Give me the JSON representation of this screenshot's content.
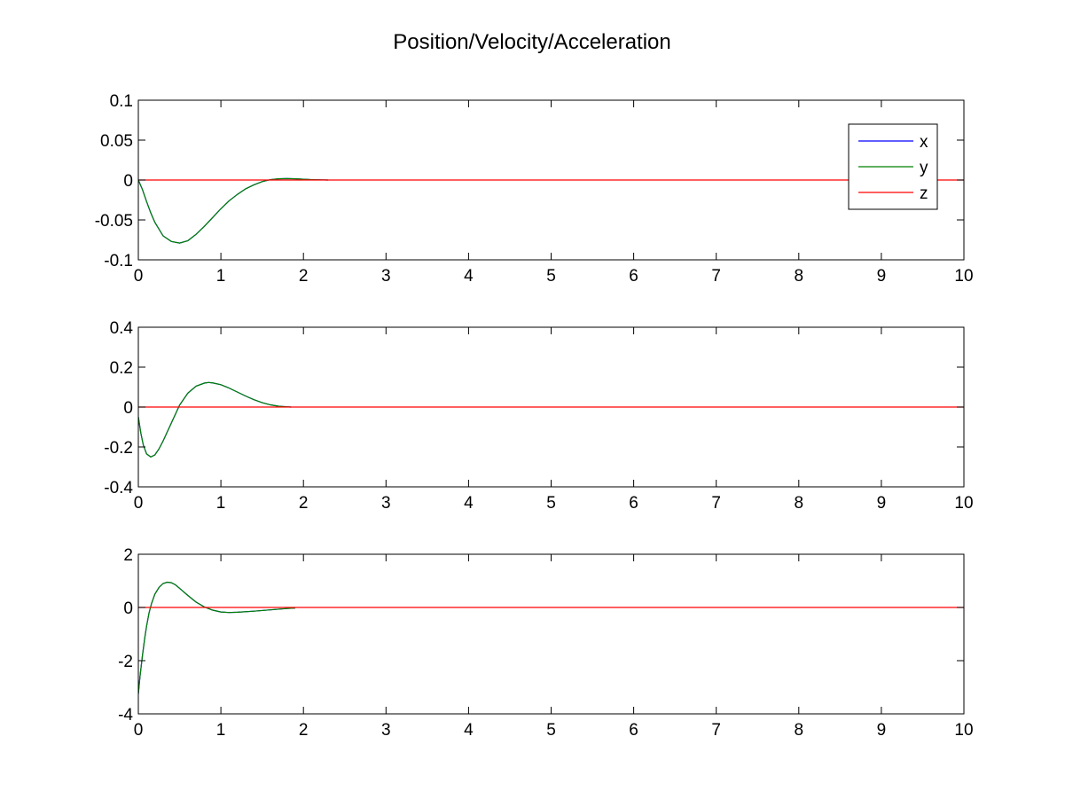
{
  "figure": {
    "title": "Position/Velocity/Acceleration"
  },
  "colors": {
    "background": "#ffffff",
    "axes": "#000000",
    "x": "#0000ff",
    "y": "#008000",
    "z": "#ff0000"
  },
  "chart_data": [
    {
      "type": "line",
      "title": "",
      "xlabel": "",
      "ylabel": "",
      "xlim": [
        0,
        10
      ],
      "ylim": [
        -0.1,
        0.1
      ],
      "xticks": [
        0,
        1,
        2,
        3,
        4,
        5,
        6,
        7,
        8,
        9,
        10
      ],
      "yticks": [
        -0.1,
        -0.05,
        0,
        0.05,
        0.1
      ],
      "ytick_labels": [
        "-0.1",
        "-0.05",
        "0",
        "0.05",
        "0.1"
      ],
      "grid": false,
      "legend": {
        "position": "top-right",
        "entries": [
          "x",
          "y",
          "z"
        ]
      },
      "series": [
        {
          "name": "x",
          "color": "#0000ff",
          "x": [
            0,
            0.05,
            0.1,
            0.15,
            0.2,
            0.3,
            0.4,
            0.5,
            0.6,
            0.7,
            0.8,
            0.9,
            1.0,
            1.1,
            1.2,
            1.3,
            1.4,
            1.5,
            1.6,
            1.7,
            1.8,
            1.9,
            2.0,
            2.1,
            2.2,
            2.3
          ],
          "y": [
            0,
            -0.012,
            -0.027,
            -0.041,
            -0.053,
            -0.07,
            -0.077,
            -0.079,
            -0.076,
            -0.068,
            -0.058,
            -0.047,
            -0.036,
            -0.026,
            -0.018,
            -0.011,
            -0.006,
            -0.002,
            0.0005,
            0.0015,
            0.0018,
            0.0015,
            0.001,
            0.0005,
            0.0002,
            0
          ]
        },
        {
          "name": "y",
          "color": "#008000",
          "x": [
            0,
            0.05,
            0.1,
            0.15,
            0.2,
            0.3,
            0.4,
            0.5,
            0.6,
            0.7,
            0.8,
            0.9,
            1.0,
            1.1,
            1.2,
            1.3,
            1.4,
            1.5,
            1.6,
            1.7,
            1.8,
            1.9,
            2.0,
            2.1,
            2.2,
            2.3
          ],
          "y": [
            0,
            -0.012,
            -0.027,
            -0.041,
            -0.053,
            -0.07,
            -0.077,
            -0.079,
            -0.076,
            -0.068,
            -0.058,
            -0.047,
            -0.036,
            -0.026,
            -0.018,
            -0.011,
            -0.006,
            -0.002,
            0.0005,
            0.0015,
            0.0018,
            0.0015,
            0.001,
            0.0005,
            0.0002,
            0
          ]
        },
        {
          "name": "z",
          "color": "#ff0000",
          "x": [
            0,
            10
          ],
          "y": [
            0,
            0
          ]
        }
      ]
    },
    {
      "type": "line",
      "title": "",
      "xlabel": "",
      "ylabel": "",
      "xlim": [
        0,
        10
      ],
      "ylim": [
        -0.4,
        0.4
      ],
      "xticks": [
        0,
        1,
        2,
        3,
        4,
        5,
        6,
        7,
        8,
        9,
        10
      ],
      "yticks": [
        -0.4,
        -0.2,
        0,
        0.2,
        0.4
      ],
      "ytick_labels": [
        "-0.4",
        "-0.2",
        "0",
        "0.2",
        "0.4"
      ],
      "grid": false,
      "series": [
        {
          "name": "x",
          "color": "#0000ff",
          "x": [
            0,
            0.03,
            0.06,
            0.1,
            0.15,
            0.2,
            0.25,
            0.3,
            0.4,
            0.5,
            0.6,
            0.7,
            0.8,
            0.85,
            0.9,
            1.0,
            1.1,
            1.2,
            1.3,
            1.4,
            1.5,
            1.6,
            1.7,
            1.8,
            1.85
          ],
          "y": [
            -0.05,
            -0.13,
            -0.19,
            -0.235,
            -0.25,
            -0.24,
            -0.21,
            -0.17,
            -0.08,
            0.01,
            0.07,
            0.105,
            0.12,
            0.123,
            0.121,
            0.112,
            0.095,
            0.075,
            0.055,
            0.037,
            0.022,
            0.011,
            0.004,
            0.001,
            0
          ]
        },
        {
          "name": "y",
          "color": "#008000",
          "x": [
            0,
            0.03,
            0.06,
            0.1,
            0.15,
            0.2,
            0.25,
            0.3,
            0.4,
            0.5,
            0.6,
            0.7,
            0.8,
            0.85,
            0.9,
            1.0,
            1.1,
            1.2,
            1.3,
            1.4,
            1.5,
            1.6,
            1.7,
            1.8,
            1.85
          ],
          "y": [
            -0.05,
            -0.13,
            -0.19,
            -0.235,
            -0.25,
            -0.24,
            -0.21,
            -0.17,
            -0.08,
            0.01,
            0.07,
            0.105,
            0.12,
            0.123,
            0.121,
            0.112,
            0.095,
            0.075,
            0.055,
            0.037,
            0.022,
            0.011,
            0.004,
            0.001,
            0
          ]
        },
        {
          "name": "z",
          "color": "#ff0000",
          "x": [
            0,
            10
          ],
          "y": [
            0,
            0
          ]
        }
      ]
    },
    {
      "type": "line",
      "title": "",
      "xlabel": "",
      "ylabel": "",
      "xlim": [
        0,
        10
      ],
      "ylim": [
        -4,
        2
      ],
      "xticks": [
        0,
        1,
        2,
        3,
        4,
        5,
        6,
        7,
        8,
        9,
        10
      ],
      "yticks": [
        -4,
        -2,
        0,
        2
      ],
      "ytick_labels": [
        "-4",
        "-2",
        "0",
        "2"
      ],
      "grid": false,
      "series": [
        {
          "name": "x",
          "color": "#0000ff",
          "x": [
            0,
            0.02,
            0.05,
            0.08,
            0.1,
            0.13,
            0.16,
            0.2,
            0.25,
            0.3,
            0.35,
            0.4,
            0.45,
            0.5,
            0.6,
            0.7,
            0.8,
            0.9,
            1.0,
            1.1,
            1.2,
            1.4,
            1.6,
            1.8,
            1.9
          ],
          "y": [
            -3.25,
            -2.6,
            -1.8,
            -1.1,
            -0.7,
            -0.2,
            0.15,
            0.5,
            0.75,
            0.9,
            0.95,
            0.93,
            0.85,
            0.72,
            0.45,
            0.2,
            0.02,
            -0.1,
            -0.17,
            -0.19,
            -0.18,
            -0.14,
            -0.09,
            -0.04,
            -0.02
          ]
        },
        {
          "name": "y",
          "color": "#008000",
          "x": [
            0,
            0.02,
            0.05,
            0.08,
            0.1,
            0.13,
            0.16,
            0.2,
            0.25,
            0.3,
            0.35,
            0.4,
            0.45,
            0.5,
            0.6,
            0.7,
            0.8,
            0.9,
            1.0,
            1.1,
            1.2,
            1.4,
            1.6,
            1.8,
            1.9
          ],
          "y": [
            -3.25,
            -2.6,
            -1.8,
            -1.1,
            -0.7,
            -0.2,
            0.15,
            0.5,
            0.75,
            0.9,
            0.95,
            0.93,
            0.85,
            0.72,
            0.45,
            0.2,
            0.02,
            -0.1,
            -0.17,
            -0.19,
            -0.18,
            -0.14,
            -0.09,
            -0.04,
            -0.02
          ]
        },
        {
          "name": "z",
          "color": "#ff0000",
          "x": [
            0,
            10
          ],
          "y": [
            0,
            0
          ]
        }
      ]
    }
  ]
}
